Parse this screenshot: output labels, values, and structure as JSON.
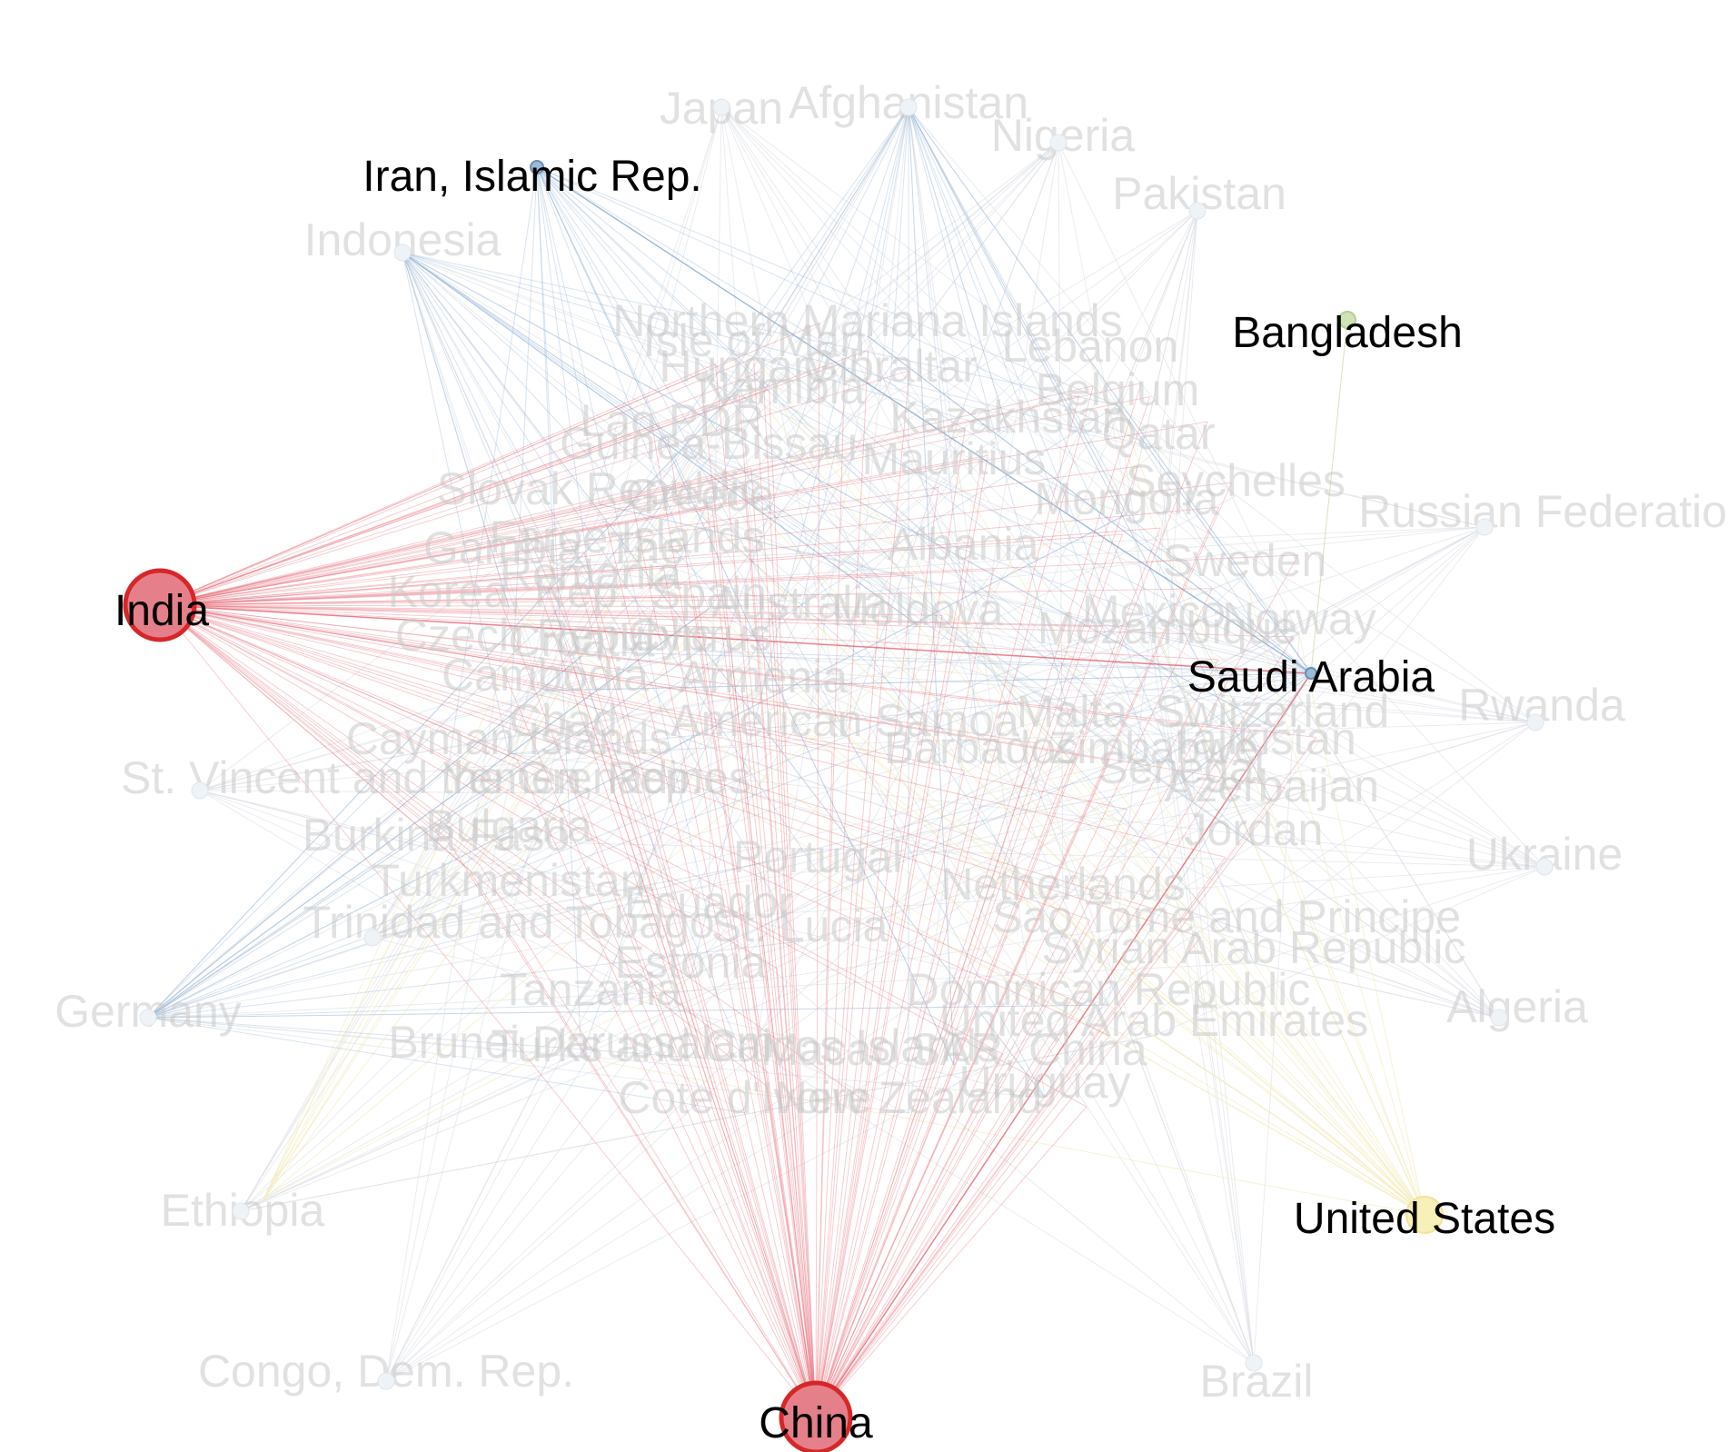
{
  "highlighted": [
    {
      "id": "India",
      "label": "India",
      "color": "#e5808a",
      "stroke": "#d62728",
      "size": 38
    },
    {
      "id": "China",
      "label": "China",
      "color": "#e5808a",
      "stroke": "#d62728",
      "size": 38
    },
    {
      "id": "Iran",
      "label": "Iran, Islamic Rep.",
      "color": "#9bbcd8",
      "stroke": "#6b8fb5",
      "size": 7
    },
    {
      "id": "Bangladesh",
      "label": "Bangladesh",
      "color": "#cfe3b4",
      "stroke": "#b5cf94",
      "size": 9
    },
    {
      "id": "SaudiArabia",
      "label": "Saudi Arabia",
      "color": "#9bbcd8",
      "stroke": "#6b8fb5",
      "size": 6
    },
    {
      "id": "UnitedStates",
      "label": "United States",
      "color": "#f7f0b8",
      "stroke": "#efe39a",
      "size": 20
    }
  ],
  "peripheral": [
    {
      "id": "Japan",
      "label": "Japan"
    },
    {
      "id": "Afghanistan",
      "label": "Afghanistan"
    },
    {
      "id": "Nigeria",
      "label": "Nigeria"
    },
    {
      "id": "Pakistan",
      "label": "Pakistan"
    },
    {
      "id": "Indonesia",
      "label": "Indonesia"
    },
    {
      "id": "Russia",
      "label": "Russian Federation"
    },
    {
      "id": "Rwanda",
      "label": "Rwanda"
    },
    {
      "id": "Ukraine",
      "label": "Ukraine"
    },
    {
      "id": "Algeria",
      "label": "Algeria"
    },
    {
      "id": "Brazil",
      "label": "Brazil"
    },
    {
      "id": "Congo",
      "label": "Congo, Dem. Rep."
    },
    {
      "id": "Ethiopia",
      "label": "Ethiopia"
    },
    {
      "id": "Germany",
      "label": "Germany"
    },
    {
      "id": "StVincent",
      "label": "St. Vincent and the Grenadines"
    },
    {
      "id": "Trinidad",
      "label": "Trinidad and Tobago"
    }
  ],
  "cluster": [
    {
      "label": "Northern Mariana Islands"
    },
    {
      "label": "Isle of Man"
    },
    {
      "label": "Lebanon"
    },
    {
      "label": "Hungary"
    },
    {
      "label": "Gibraltar"
    },
    {
      "label": "Belgium"
    },
    {
      "label": "Namibia"
    },
    {
      "label": "Kazakhstan"
    },
    {
      "label": "Qatar"
    },
    {
      "label": "Lao PDR"
    },
    {
      "label": "Guinea-Bissau"
    },
    {
      "label": "Mauritius"
    },
    {
      "label": "Seychelles"
    },
    {
      "label": "Slovak Republic"
    },
    {
      "label": "Greece"
    },
    {
      "label": "Mongolia"
    },
    {
      "label": "Faroe Islands"
    },
    {
      "label": "Gambia, The"
    },
    {
      "label": "Albania"
    },
    {
      "label": "Sweden"
    },
    {
      "label": "Romania"
    },
    {
      "label": "Korea, Rep."
    },
    {
      "label": "Spain"
    },
    {
      "label": "Australia"
    },
    {
      "label": "Moldova"
    },
    {
      "label": "Mexico"
    },
    {
      "label": "Norway"
    },
    {
      "label": "Czech Republic"
    },
    {
      "label": "Croatia"
    },
    {
      "label": "Cyprus"
    },
    {
      "label": "Mozambique"
    },
    {
      "label": "Cambodia"
    },
    {
      "label": "Armenia"
    },
    {
      "label": "Switzerland"
    },
    {
      "label": "Chad"
    },
    {
      "label": "American Samoa"
    },
    {
      "label": "Malta"
    },
    {
      "label": "Cayman Islands"
    },
    {
      "label": "Barbados"
    },
    {
      "label": "Zimbabwe"
    },
    {
      "label": "Tajikistan"
    },
    {
      "label": "Yemen, Rep."
    },
    {
      "label": "Senegal"
    },
    {
      "label": "Azerbaijan"
    },
    {
      "label": "Bulgaria"
    },
    {
      "label": "Jordan"
    },
    {
      "label": "Burkina Faso"
    },
    {
      "label": "Portugal"
    },
    {
      "label": "Turkmenistan"
    },
    {
      "label": "Netherlands"
    },
    {
      "label": "Ecuador"
    },
    {
      "label": "Sao Tome and Principe"
    },
    {
      "label": "St. Lucia"
    },
    {
      "label": "Syrian Arab Republic"
    },
    {
      "label": "Estonia"
    },
    {
      "label": "Tanzania"
    },
    {
      "label": "Dominican Republic"
    },
    {
      "label": "United Arab Emirates"
    },
    {
      "label": "Brunei Darussalam"
    },
    {
      "label": "Turks and Caicos Islands"
    },
    {
      "label": "Macao SAR, China"
    },
    {
      "label": "Uruguay"
    },
    {
      "label": "Cote d'Ivoire"
    },
    {
      "label": "New Zealand"
    }
  ],
  "colors": {
    "india_edges": "#e8626e",
    "china_edges": "#e8626e",
    "blue_edges": "#8fb2d6",
    "faint_edges": "#d8dde3",
    "yellow_edges": "#f4edc0"
  }
}
